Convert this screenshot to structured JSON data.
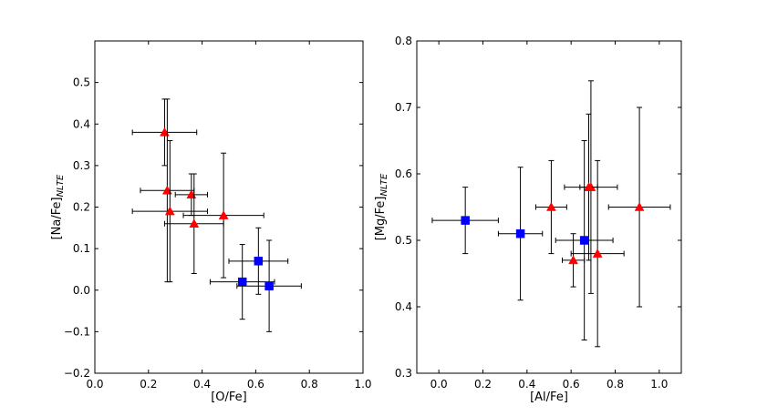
{
  "chart_data": [
    {
      "type": "scatter",
      "title": "",
      "xlabel": "[O/Fe]",
      "ylabel": "[Na/Fe]",
      "ylabel_subscript": "NLTE",
      "xlim": [
        0.0,
        1.0
      ],
      "ylim": [
        -0.2,
        0.6
      ],
      "xticks": [
        0.0,
        0.2,
        0.4,
        0.6,
        0.8,
        1.0
      ],
      "xtick_labels": [
        "0.0",
        "0.2",
        "0.4",
        "0.6",
        "0.8",
        "1.0"
      ],
      "yticks": [
        -0.2,
        -0.1,
        0.0,
        0.1,
        0.2,
        0.3,
        0.4,
        0.5
      ],
      "ytick_labels": [
        "−0.2",
        "−0.1",
        "0.0",
        "0.1",
        "0.2",
        "0.3",
        "0.4",
        "0.5"
      ],
      "grid": false,
      "series": [
        {
          "name": "red-triangles",
          "marker": "triangle",
          "color": "#ff0000",
          "points": [
            {
              "x": 0.26,
              "y": 0.38,
              "xerr": 0.12,
              "yerr": 0.08
            },
            {
              "x": 0.27,
              "y": 0.24,
              "xerr": 0.1,
              "yerr": 0.22
            },
            {
              "x": 0.28,
              "y": 0.19,
              "xerr": 0.14,
              "yerr": 0.17
            },
            {
              "x": 0.36,
              "y": 0.23,
              "xerr": 0.06,
              "yerr": 0.05
            },
            {
              "x": 0.37,
              "y": 0.16,
              "xerr": 0.11,
              "yerr": 0.12
            },
            {
              "x": 0.48,
              "y": 0.18,
              "xerr": 0.15,
              "yerr": 0.15
            }
          ]
        },
        {
          "name": "blue-squares",
          "marker": "square",
          "color": "#0000ff",
          "points": [
            {
              "x": 0.55,
              "y": 0.02,
              "xerr": 0.12,
              "yerr": 0.09
            },
            {
              "x": 0.61,
              "y": 0.07,
              "xerr": 0.11,
              "yerr": 0.08
            },
            {
              "x": 0.65,
              "y": 0.01,
              "xerr": 0.12,
              "yerr": 0.11
            }
          ]
        }
      ]
    },
    {
      "type": "scatter",
      "title": "",
      "xlabel": "[Al/Fe]",
      "ylabel": "[Mg/Fe]",
      "ylabel_subscript": "NLTE",
      "xlim": [
        -0.1,
        1.1
      ],
      "ylim": [
        0.3,
        0.8
      ],
      "xticks": [
        0.0,
        0.2,
        0.4,
        0.6,
        0.8,
        1.0
      ],
      "xtick_labels": [
        "0.0",
        "0.2",
        "0.4",
        "0.6",
        "0.8",
        "1.0"
      ],
      "yticks": [
        0.3,
        0.4,
        0.5,
        0.6,
        0.7,
        0.8
      ],
      "ytick_labels": [
        "0.3",
        "0.4",
        "0.5",
        "0.6",
        "0.7",
        "0.8"
      ],
      "grid": false,
      "series": [
        {
          "name": "red-triangles",
          "marker": "triangle",
          "color": "#ff0000",
          "points": [
            {
              "x": 0.51,
              "y": 0.55,
              "xerr": 0.07,
              "yerr": 0.07
            },
            {
              "x": 0.61,
              "y": 0.47,
              "xerr": 0.05,
              "yerr": 0.04
            },
            {
              "x": 0.69,
              "y": 0.58,
              "xerr": 0.12,
              "yerr": 0.16
            },
            {
              "x": 0.68,
              "y": 0.58,
              "xerr": 0.04,
              "yerr": 0.11
            },
            {
              "x": 0.72,
              "y": 0.48,
              "xerr": 0.12,
              "yerr": 0.14
            },
            {
              "x": 0.91,
              "y": 0.55,
              "xerr": 0.14,
              "yerr": 0.15
            }
          ]
        },
        {
          "name": "blue-squares",
          "marker": "square",
          "color": "#0000ff",
          "points": [
            {
              "x": 0.12,
              "y": 0.53,
              "xerr": 0.15,
              "yerr": 0.05
            },
            {
              "x": 0.37,
              "y": 0.51,
              "xerr": 0.1,
              "yerr": 0.1
            },
            {
              "x": 0.66,
              "y": 0.5,
              "xerr": 0.13,
              "yerr": 0.15
            }
          ]
        }
      ]
    }
  ]
}
